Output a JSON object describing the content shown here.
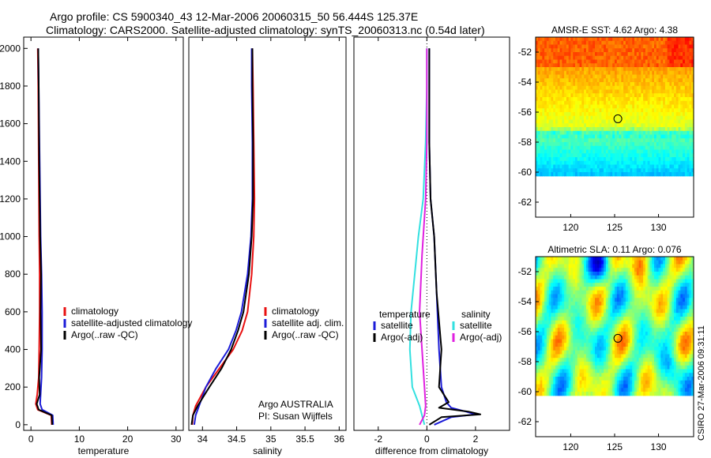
{
  "header": {
    "title_line1": "Argo profile: CS 5900340_43 12-Mar-2006 20060315_50 56.444S 125.37E",
    "title_line2": "Climatology: CARS2000. Satellite-adjusted climatology: synTS_20060313.nc (0.54d later)"
  },
  "timestamp": "CSIRO 27-Mar-2006 09:31:11",
  "colors": {
    "red": "#e81010",
    "blue": "#1c1cd8",
    "black": "#000000",
    "cyan": "#33e0e0",
    "magenta": "#e020e0"
  },
  "chart_data": [
    {
      "type": "line",
      "id": "temperature",
      "xlabel": "temperature",
      "ylabel": "",
      "xlim": [
        -1.5,
        31.5
      ],
      "ylim": [
        2060,
        -30
      ],
      "xticks": [
        0,
        10,
        20,
        30
      ],
      "xtick_labels": [
        "0",
        "10",
        "20",
        "30"
      ],
      "yticks": [
        0,
        200,
        400,
        600,
        800,
        1000,
        1200,
        1400,
        1600,
        1800,
        2000
      ],
      "ytick_labels": [
        "0",
        "200",
        "400",
        "600",
        "800",
        "1000",
        "1200",
        "1400",
        "1600",
        "1800",
        "2000"
      ],
      "series": [
        {
          "name": "climatology",
          "color": "#e81010",
          "x": [
            4.3,
            4.2,
            1.4,
            1.0,
            1.3,
            1.6,
            1.7,
            1.8,
            1.8,
            1.7,
            1.6,
            1.5,
            1.4
          ],
          "y": [
            0,
            50,
            80,
            110,
            160,
            250,
            400,
            600,
            800,
            1000,
            1400,
            1800,
            2000
          ]
        },
        {
          "name": "satellite-adjusted climatology",
          "color": "#1c1cd8",
          "x": [
            4.6,
            4.5,
            2.3,
            1.9,
            2.0,
            2.2,
            2.3,
            2.3,
            2.2,
            2.0,
            1.8,
            1.6,
            1.5
          ],
          "y": [
            0,
            50,
            80,
            110,
            160,
            250,
            400,
            600,
            800,
            1000,
            1400,
            1800,
            2000
          ]
        },
        {
          "name": "Argo(..raw -QC)",
          "color": "#000000",
          "x": [
            4.4,
            4.3,
            1.6,
            1.2,
            1.8,
            1.7,
            2.1,
            2.0,
            2.1,
            1.9,
            1.7,
            1.6,
            1.5
          ],
          "y": [
            0,
            50,
            80,
            110,
            160,
            250,
            400,
            600,
            800,
            1000,
            1400,
            1800,
            2000
          ]
        }
      ],
      "legend": {
        "placement": "center-left",
        "entries": [
          "climatology",
          "satellite-adjusted climatology",
          "Argo(..raw -QC)"
        ]
      }
    },
    {
      "type": "line",
      "id": "salinity",
      "xlabel": "salinity",
      "xlim": [
        33.8,
        36.1
      ],
      "ylim": [
        2060,
        -30
      ],
      "xticks": [
        34,
        34.5,
        35,
        35.5,
        36
      ],
      "xtick_labels": [
        "34",
        "34.5",
        "35",
        "35.5",
        "36"
      ],
      "series": [
        {
          "name": "climatology",
          "color": "#e81010",
          "x": [
            33.85,
            33.86,
            33.9,
            34.05,
            34.25,
            34.45,
            34.58,
            34.66,
            34.72,
            34.75,
            34.76,
            34.75,
            34.74,
            34.73
          ],
          "y": [
            0,
            50,
            100,
            200,
            300,
            400,
            500,
            600,
            800,
            1000,
            1200,
            1500,
            1800,
            2000
          ]
        },
        {
          "name": "satellite adj. clim.",
          "color": "#1c1cd8",
          "x": [
            33.88,
            33.9,
            33.95,
            34.05,
            34.2,
            34.38,
            34.49,
            34.57,
            34.66,
            34.71,
            34.73,
            34.73,
            34.72,
            34.72
          ],
          "y": [
            0,
            50,
            100,
            200,
            300,
            400,
            500,
            600,
            800,
            1000,
            1200,
            1500,
            1800,
            2000
          ]
        },
        {
          "name": "Argo(..raw -QC)",
          "color": "#000000",
          "x": [
            33.84,
            33.86,
            33.93,
            34.1,
            34.28,
            34.42,
            34.52,
            34.6,
            34.68,
            34.72,
            34.74,
            34.74,
            34.73,
            34.73
          ],
          "y": [
            0,
            50,
            100,
            200,
            300,
            400,
            500,
            600,
            800,
            1000,
            1200,
            1500,
            1800,
            2000
          ]
        }
      ],
      "legend": {
        "placement": "center-right",
        "entries": [
          "climatology",
          "satellite adj. clim.",
          "Argo(..raw -QC)"
        ]
      },
      "annotation": [
        "Argo AUSTRALIA",
        "PI: Susan Wijffels"
      ]
    },
    {
      "type": "line",
      "id": "difference",
      "xlabel": "difference from climatology",
      "xlim": [
        -3.0,
        3.4
      ],
      "ylim": [
        2060,
        -30
      ],
      "xticks": [
        -2,
        0,
        2
      ],
      "xtick_labels": [
        "-2",
        "0",
        "2"
      ],
      "series": [
        {
          "name": "temperature satellite",
          "color": "#1c1cd8",
          "x": [
            0.3,
            1.0,
            2.0,
            1.6,
            1.0,
            0.8,
            0.6,
            0.5,
            0.4,
            0.3,
            0.15,
            0.1,
            0.1,
            0.1
          ],
          "y": [
            0,
            40,
            55,
            70,
            90,
            120,
            200,
            400,
            700,
            1000,
            1200,
            1500,
            1800,
            2000
          ]
        },
        {
          "name": "temperature Argo(-adj)",
          "color": "#000000",
          "x": [
            0.1,
            0.6,
            2.2,
            1.7,
            0.5,
            0.9,
            0.5,
            0.6,
            0.4,
            0.3,
            0.15,
            0.1,
            0.1,
            0.1
          ],
          "y": [
            0,
            40,
            55,
            70,
            90,
            120,
            200,
            400,
            700,
            1000,
            1200,
            1500,
            1800,
            2000
          ]
        },
        {
          "name": "salinity satellite",
          "color": "#33e0e0",
          "x": [
            -0.1,
            -0.3,
            -0.6,
            -0.7,
            -0.65,
            -0.5,
            -0.35,
            -0.15,
            -0.05,
            0.0,
            0.0
          ],
          "y": [
            0,
            100,
            200,
            400,
            600,
            800,
            1000,
            1200,
            1500,
            1800,
            2000
          ]
        },
        {
          "name": "salinity Argo(-adj)",
          "color": "#e020e0",
          "x": [
            -0.3,
            -0.1,
            -0.05,
            -0.1,
            -0.2,
            -0.3,
            -0.2,
            -0.05,
            0.0,
            0.0
          ],
          "y": [
            0,
            50,
            100,
            200,
            400,
            600,
            900,
            1200,
            1500,
            2000
          ]
        }
      ],
      "legend": {
        "placement": "center",
        "groups": [
          "temperature",
          "salinity"
        ],
        "entries": [
          "satellite",
          "Argo(-adj)",
          "satellite",
          "Argo(-adj)"
        ]
      }
    },
    {
      "type": "heatmap",
      "id": "sst",
      "title": "AMSR-E SST: 4.62 Argo: 4.38",
      "xlim": [
        116,
        134
      ],
      "ylim": [
        -63,
        -51
      ],
      "xticks": [
        120,
        125,
        130
      ],
      "xtick_labels": [
        "120",
        "125",
        "130"
      ],
      "yticks": [
        -52,
        -54,
        -56,
        -58,
        -60,
        -62
      ],
      "ytick_labels": [
        "-52",
        "-54",
        "-56",
        "-58",
        "-60",
        "-62"
      ],
      "data_extent_lat": [
        -60,
        -51
      ],
      "argo_position": [
        125.37,
        -56.444
      ]
    },
    {
      "type": "heatmap",
      "id": "sla",
      "title": "Altimetric SLA: 0.11 Argo: 0.076",
      "xlim": [
        116,
        134
      ],
      "ylim": [
        -63,
        -51
      ],
      "xticks": [
        120,
        125,
        130
      ],
      "xtick_labels": [
        "120",
        "125",
        "130"
      ],
      "yticks": [
        -52,
        -54,
        -56,
        -58,
        -60,
        -62
      ],
      "ytick_labels": [
        "-52",
        "-54",
        "-56",
        "-58",
        "-60",
        "-62"
      ],
      "data_extent_lat": [
        -60,
        -51
      ],
      "argo_position": [
        125.37,
        -56.444
      ]
    }
  ]
}
